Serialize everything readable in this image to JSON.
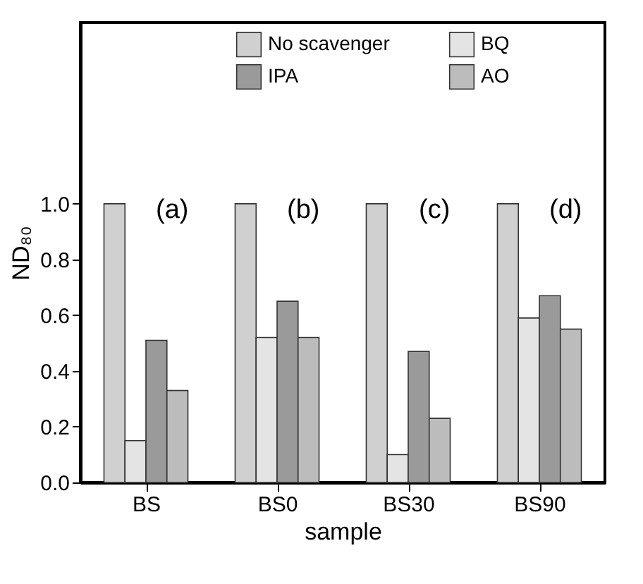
{
  "chart_data": {
    "type": "bar",
    "xlabel": "sample",
    "ylabel": "ND₈₀",
    "categories": [
      "BS",
      "BS0",
      "BS30",
      "BS90"
    ],
    "series": [
      {
        "name": "No scavenger",
        "color": "#d0d0d0",
        "values": [
          1.0,
          1.0,
          1.0,
          1.0
        ]
      },
      {
        "name": "BQ",
        "color": "#e4e4e4",
        "values": [
          0.15,
          0.52,
          0.1,
          0.59
        ]
      },
      {
        "name": "IPA",
        "color": "#9a9a9a",
        "values": [
          0.51,
          0.65,
          0.47,
          0.67
        ]
      },
      {
        "name": "AO",
        "color": "#bcbcbc",
        "values": [
          0.33,
          0.52,
          0.23,
          0.55
        ]
      }
    ],
    "annotations": [
      "(a)",
      "(b)",
      "(c)",
      "(d)"
    ],
    "ylim": [
      0,
      1.65
    ],
    "yticks": [
      {
        "value": 0,
        "label": "0.0"
      },
      {
        "value": 0.2,
        "label": "0.2"
      },
      {
        "value": 0.4,
        "label": "0.4"
      },
      {
        "value": 0.6,
        "label": "0.6"
      },
      {
        "value": 0.8,
        "label": "0.8"
      },
      {
        "value": 1,
        "label": "1.0"
      }
    ],
    "grid": false,
    "legend": "top"
  }
}
